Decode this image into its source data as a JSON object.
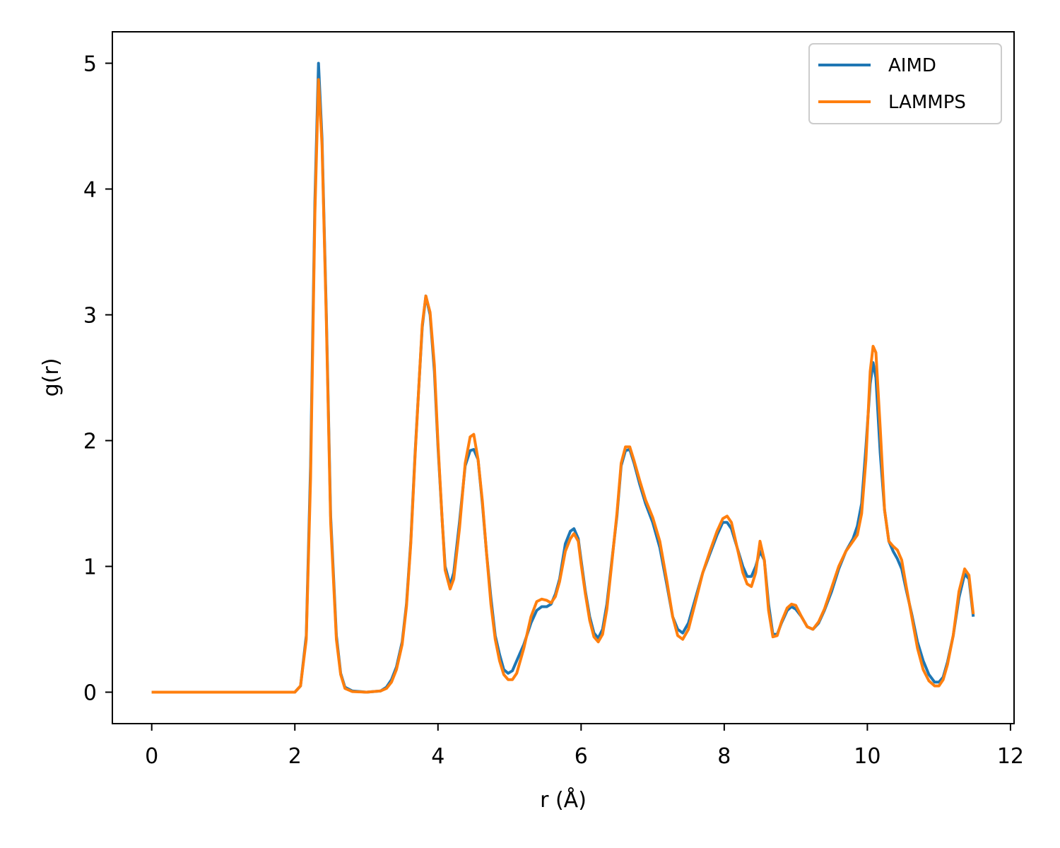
{
  "chart_data": {
    "type": "line",
    "xlabel": "r (Å)",
    "ylabel": "g(r)",
    "xlim": [
      -0.55,
      12.05
    ],
    "ylim": [
      -0.25,
      5.25
    ],
    "xticks": [
      0,
      2,
      4,
      6,
      8,
      10,
      12
    ],
    "yticks": [
      0,
      1,
      2,
      3,
      4,
      5
    ],
    "grid": false,
    "legend_position": "top-right",
    "series": [
      {
        "name": "AIMD",
        "color": "#1f77b4",
        "points": [
          [
            0,
            0
          ],
          [
            0.5,
            0
          ],
          [
            1,
            0
          ],
          [
            1.5,
            0
          ],
          [
            2.0,
            0
          ],
          [
            2.08,
            0.05
          ],
          [
            2.16,
            0.45
          ],
          [
            2.22,
            1.8
          ],
          [
            2.28,
            3.9
          ],
          [
            2.33,
            5.0
          ],
          [
            2.38,
            4.4
          ],
          [
            2.44,
            3.0
          ],
          [
            2.5,
            1.4
          ],
          [
            2.58,
            0.45
          ],
          [
            2.64,
            0.15
          ],
          [
            2.7,
            0.04
          ],
          [
            2.8,
            0.01
          ],
          [
            3.0,
            0
          ],
          [
            3.2,
            0.01
          ],
          [
            3.28,
            0.04
          ],
          [
            3.35,
            0.1
          ],
          [
            3.42,
            0.2
          ],
          [
            3.5,
            0.4
          ],
          [
            3.56,
            0.7
          ],
          [
            3.62,
            1.2
          ],
          [
            3.68,
            1.9
          ],
          [
            3.74,
            2.5
          ],
          [
            3.78,
            2.9
          ],
          [
            3.83,
            3.15
          ],
          [
            3.89,
            3.0
          ],
          [
            3.95,
            2.55
          ],
          [
            4.0,
            1.95
          ],
          [
            4.06,
            1.35
          ],
          [
            4.1,
            1.0
          ],
          [
            4.17,
            0.85
          ],
          [
            4.22,
            0.95
          ],
          [
            4.3,
            1.35
          ],
          [
            4.38,
            1.8
          ],
          [
            4.45,
            1.92
          ],
          [
            4.5,
            1.93
          ],
          [
            4.56,
            1.85
          ],
          [
            4.62,
            1.5
          ],
          [
            4.68,
            1.1
          ],
          [
            4.74,
            0.75
          ],
          [
            4.8,
            0.45
          ],
          [
            4.86,
            0.3
          ],
          [
            4.92,
            0.18
          ],
          [
            4.98,
            0.15
          ],
          [
            5.04,
            0.17
          ],
          [
            5.1,
            0.25
          ],
          [
            5.2,
            0.38
          ],
          [
            5.3,
            0.55
          ],
          [
            5.38,
            0.65
          ],
          [
            5.45,
            0.68
          ],
          [
            5.52,
            0.68
          ],
          [
            5.58,
            0.7
          ],
          [
            5.64,
            0.78
          ],
          [
            5.7,
            0.9
          ],
          [
            5.78,
            1.18
          ],
          [
            5.85,
            1.28
          ],
          [
            5.9,
            1.3
          ],
          [
            5.96,
            1.22
          ],
          [
            6.0,
            1.05
          ],
          [
            6.06,
            0.8
          ],
          [
            6.12,
            0.6
          ],
          [
            6.18,
            0.47
          ],
          [
            6.24,
            0.43
          ],
          [
            6.3,
            0.5
          ],
          [
            6.36,
            0.7
          ],
          [
            6.42,
            1.0
          ],
          [
            6.5,
            1.4
          ],
          [
            6.56,
            1.8
          ],
          [
            6.62,
            1.92
          ],
          [
            6.68,
            1.93
          ],
          [
            6.74,
            1.82
          ],
          [
            6.82,
            1.65
          ],
          [
            6.9,
            1.5
          ],
          [
            7.0,
            1.35
          ],
          [
            7.1,
            1.15
          ],
          [
            7.2,
            0.85
          ],
          [
            7.28,
            0.6
          ],
          [
            7.35,
            0.5
          ],
          [
            7.42,
            0.47
          ],
          [
            7.5,
            0.55
          ],
          [
            7.6,
            0.75
          ],
          [
            7.7,
            0.95
          ],
          [
            7.8,
            1.1
          ],
          [
            7.9,
            1.25
          ],
          [
            7.98,
            1.35
          ],
          [
            8.04,
            1.35
          ],
          [
            8.1,
            1.3
          ],
          [
            8.18,
            1.15
          ],
          [
            8.26,
            1.0
          ],
          [
            8.32,
            0.92
          ],
          [
            8.38,
            0.92
          ],
          [
            8.44,
            1.0
          ],
          [
            8.5,
            1.12
          ],
          [
            8.56,
            1.05
          ],
          [
            8.62,
            0.7
          ],
          [
            8.68,
            0.46
          ],
          [
            8.74,
            0.46
          ],
          [
            8.8,
            0.55
          ],
          [
            8.88,
            0.65
          ],
          [
            8.94,
            0.68
          ],
          [
            9.0,
            0.66
          ],
          [
            9.08,
            0.6
          ],
          [
            9.16,
            0.52
          ],
          [
            9.24,
            0.5
          ],
          [
            9.32,
            0.55
          ],
          [
            9.4,
            0.65
          ],
          [
            9.5,
            0.8
          ],
          [
            9.6,
            0.98
          ],
          [
            9.7,
            1.12
          ],
          [
            9.8,
            1.22
          ],
          [
            9.86,
            1.32
          ],
          [
            9.92,
            1.5
          ],
          [
            9.98,
            1.95
          ],
          [
            10.04,
            2.45
          ],
          [
            10.08,
            2.62
          ],
          [
            10.12,
            2.5
          ],
          [
            10.18,
            1.9
          ],
          [
            10.24,
            1.45
          ],
          [
            10.3,
            1.2
          ],
          [
            10.36,
            1.12
          ],
          [
            10.42,
            1.06
          ],
          [
            10.48,
            0.98
          ],
          [
            10.54,
            0.82
          ],
          [
            10.62,
            0.62
          ],
          [
            10.7,
            0.4
          ],
          [
            10.78,
            0.25
          ],
          [
            10.86,
            0.14
          ],
          [
            10.94,
            0.08
          ],
          [
            11.0,
            0.08
          ],
          [
            11.06,
            0.12
          ],
          [
            11.12,
            0.24
          ],
          [
            11.2,
            0.45
          ],
          [
            11.28,
            0.75
          ],
          [
            11.36,
            0.94
          ],
          [
            11.42,
            0.9
          ],
          [
            11.48,
            0.6
          ]
        ]
      },
      {
        "name": "LAMMPS",
        "color": "#ff7f0e",
        "points": [
          [
            0,
            0
          ],
          [
            0.5,
            0
          ],
          [
            1,
            0
          ],
          [
            1.5,
            0
          ],
          [
            2.0,
            0
          ],
          [
            2.08,
            0.05
          ],
          [
            2.16,
            0.42
          ],
          [
            2.22,
            1.7
          ],
          [
            2.28,
            3.8
          ],
          [
            2.33,
            4.87
          ],
          [
            2.38,
            4.35
          ],
          [
            2.44,
            2.95
          ],
          [
            2.5,
            1.35
          ],
          [
            2.58,
            0.42
          ],
          [
            2.64,
            0.14
          ],
          [
            2.7,
            0.03
          ],
          [
            2.8,
            0.005
          ],
          [
            3.0,
            0
          ],
          [
            3.2,
            0.01
          ],
          [
            3.28,
            0.03
          ],
          [
            3.35,
            0.08
          ],
          [
            3.42,
            0.18
          ],
          [
            3.5,
            0.38
          ],
          [
            3.56,
            0.68
          ],
          [
            3.62,
            1.18
          ],
          [
            3.68,
            1.88
          ],
          [
            3.74,
            2.5
          ],
          [
            3.78,
            2.92
          ],
          [
            3.83,
            3.15
          ],
          [
            3.89,
            3.02
          ],
          [
            3.95,
            2.6
          ],
          [
            4.0,
            1.98
          ],
          [
            4.06,
            1.35
          ],
          [
            4.1,
            0.97
          ],
          [
            4.17,
            0.82
          ],
          [
            4.22,
            0.9
          ],
          [
            4.3,
            1.3
          ],
          [
            4.38,
            1.82
          ],
          [
            4.45,
            2.03
          ],
          [
            4.5,
            2.05
          ],
          [
            4.56,
            1.85
          ],
          [
            4.62,
            1.52
          ],
          [
            4.68,
            1.1
          ],
          [
            4.74,
            0.7
          ],
          [
            4.8,
            0.42
          ],
          [
            4.86,
            0.25
          ],
          [
            4.92,
            0.14
          ],
          [
            4.98,
            0.1
          ],
          [
            5.04,
            0.1
          ],
          [
            5.1,
            0.15
          ],
          [
            5.2,
            0.35
          ],
          [
            5.3,
            0.6
          ],
          [
            5.38,
            0.72
          ],
          [
            5.45,
            0.74
          ],
          [
            5.52,
            0.73
          ],
          [
            5.58,
            0.71
          ],
          [
            5.64,
            0.76
          ],
          [
            5.7,
            0.88
          ],
          [
            5.78,
            1.12
          ],
          [
            5.85,
            1.22
          ],
          [
            5.9,
            1.26
          ],
          [
            5.96,
            1.2
          ],
          [
            6.0,
            1.02
          ],
          [
            6.06,
            0.78
          ],
          [
            6.12,
            0.57
          ],
          [
            6.18,
            0.44
          ],
          [
            6.24,
            0.4
          ],
          [
            6.3,
            0.46
          ],
          [
            6.36,
            0.66
          ],
          [
            6.42,
            0.98
          ],
          [
            6.5,
            1.42
          ],
          [
            6.56,
            1.82
          ],
          [
            6.62,
            1.95
          ],
          [
            6.68,
            1.95
          ],
          [
            6.74,
            1.84
          ],
          [
            6.82,
            1.68
          ],
          [
            6.9,
            1.53
          ],
          [
            7.0,
            1.39
          ],
          [
            7.1,
            1.2
          ],
          [
            7.2,
            0.88
          ],
          [
            7.28,
            0.6
          ],
          [
            7.35,
            0.45
          ],
          [
            7.42,
            0.42
          ],
          [
            7.5,
            0.5
          ],
          [
            7.6,
            0.72
          ],
          [
            7.7,
            0.95
          ],
          [
            7.8,
            1.12
          ],
          [
            7.9,
            1.28
          ],
          [
            7.98,
            1.38
          ],
          [
            8.04,
            1.4
          ],
          [
            8.1,
            1.35
          ],
          [
            8.18,
            1.15
          ],
          [
            8.26,
            0.95
          ],
          [
            8.32,
            0.86
          ],
          [
            8.38,
            0.84
          ],
          [
            8.44,
            0.95
          ],
          [
            8.5,
            1.2
          ],
          [
            8.56,
            1.05
          ],
          [
            8.62,
            0.65
          ],
          [
            8.68,
            0.44
          ],
          [
            8.74,
            0.45
          ],
          [
            8.8,
            0.56
          ],
          [
            8.88,
            0.67
          ],
          [
            8.94,
            0.7
          ],
          [
            9.0,
            0.69
          ],
          [
            9.08,
            0.6
          ],
          [
            9.16,
            0.52
          ],
          [
            9.24,
            0.5
          ],
          [
            9.32,
            0.56
          ],
          [
            9.4,
            0.66
          ],
          [
            9.5,
            0.83
          ],
          [
            9.6,
            1.0
          ],
          [
            9.7,
            1.12
          ],
          [
            9.8,
            1.2
          ],
          [
            9.86,
            1.25
          ],
          [
            9.92,
            1.42
          ],
          [
            9.98,
            1.85
          ],
          [
            10.04,
            2.55
          ],
          [
            10.08,
            2.75
          ],
          [
            10.12,
            2.7
          ],
          [
            10.18,
            2.1
          ],
          [
            10.24,
            1.45
          ],
          [
            10.3,
            1.2
          ],
          [
            10.36,
            1.16
          ],
          [
            10.42,
            1.13
          ],
          [
            10.48,
            1.05
          ],
          [
            10.54,
            0.85
          ],
          [
            10.62,
            0.6
          ],
          [
            10.7,
            0.35
          ],
          [
            10.78,
            0.18
          ],
          [
            10.86,
            0.09
          ],
          [
            10.94,
            0.05
          ],
          [
            11.0,
            0.05
          ],
          [
            11.06,
            0.1
          ],
          [
            11.12,
            0.22
          ],
          [
            11.2,
            0.45
          ],
          [
            11.28,
            0.8
          ],
          [
            11.36,
            0.98
          ],
          [
            11.42,
            0.93
          ],
          [
            11.48,
            0.62
          ]
        ]
      }
    ]
  }
}
